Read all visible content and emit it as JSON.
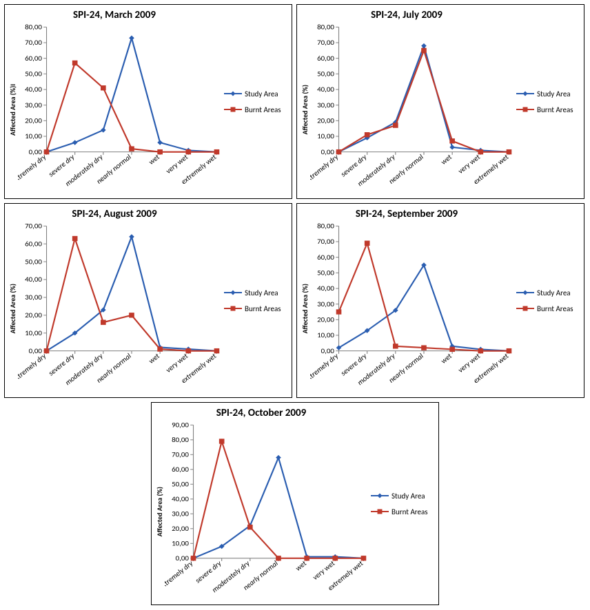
{
  "global": {
    "categories": [
      "extremely dry",
      "severe dry",
      "moderately dry",
      "nearly normal",
      "wet",
      "very wet",
      "extremely wet"
    ],
    "ylabel": "Affected Area (%)",
    "ylabel_march": "Affected Area (%)I",
    "series": [
      {
        "key": "study",
        "label": "Study Area",
        "color": "#2a5db0",
        "marker": "diamond"
      },
      {
        "key": "burnt",
        "label": "Burnt Areas",
        "color": "#c0392b",
        "marker": "square"
      }
    ],
    "grid_color": "#bfbfbf",
    "axis_color": "#808080",
    "tick_font_size": 10,
    "title_font_size": 15,
    "line_width": 2,
    "marker_size": 5,
    "background": "#ffffff"
  },
  "charts": [
    {
      "id": "march",
      "title": "SPI-24, March 2009",
      "ylim": [
        0,
        80
      ],
      "ystep": 10,
      "study": [
        0,
        6,
        14,
        73,
        6,
        1,
        0
      ],
      "burnt": [
        0,
        57,
        41,
        2,
        0,
        0,
        0
      ]
    },
    {
      "id": "july",
      "title": "SPI-24, July 2009",
      "ylim": [
        0,
        80
      ],
      "ystep": 10,
      "study": [
        0,
        9,
        19,
        68,
        3,
        1,
        0
      ],
      "burnt": [
        0,
        11,
        17,
        65,
        7,
        0,
        0
      ]
    },
    {
      "id": "august",
      "title": "SPI-24, August 2009",
      "ylim": [
        0,
        70
      ],
      "ystep": 10,
      "study": [
        0,
        10,
        23,
        64,
        2,
        1,
        0
      ],
      "burnt": [
        0,
        63,
        16,
        20,
        1,
        0,
        0
      ]
    },
    {
      "id": "september",
      "title": "SPI-24, September 2009",
      "ylim": [
        0,
        80
      ],
      "ystep": 10,
      "study": [
        2,
        13,
        26,
        55,
        3,
        1,
        0
      ],
      "burnt": [
        25,
        69,
        3,
        2,
        1,
        0,
        0
      ]
    },
    {
      "id": "october",
      "title": "SPI-24, October 2009",
      "ylim": [
        0,
        90
      ],
      "ystep": 10,
      "study": [
        0,
        8,
        22,
        68,
        1,
        1,
        0
      ],
      "burnt": [
        0,
        79,
        21,
        0,
        0,
        0,
        0
      ]
    }
  ]
}
